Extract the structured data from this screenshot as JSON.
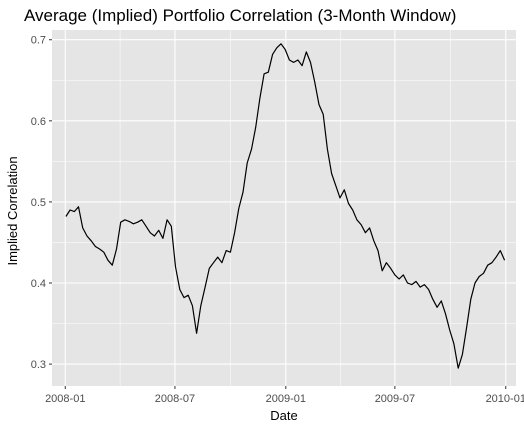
{
  "chart_data": {
    "type": "line",
    "title": "Average (Implied) Portfolio Correlation (3-Month Window)",
    "xlabel": "Date",
    "ylabel": "Implied Correlation",
    "x_ticks": [
      "2008-01",
      "2008-07",
      "2009-01",
      "2009-07",
      "2010-01"
    ],
    "y_ticks": [
      "0.3",
      "0.4",
      "0.5",
      "0.6",
      "0.7"
    ],
    "xlim": [
      "2007-12-10",
      "2010-01-18"
    ],
    "ylim": [
      0.273,
      0.712
    ],
    "grid": true,
    "legend": "none",
    "colors": {
      "panel": "#e5e5e5",
      "grid": "#ffffff",
      "line": "#000000",
      "tick": "#4d4d4d"
    },
    "series": [
      {
        "x": [
          "2008-01-02",
          "2008-01-09",
          "2008-01-16",
          "2008-01-23",
          "2008-01-30",
          "2008-02-06",
          "2008-02-13",
          "2008-02-20",
          "2008-02-27",
          "2008-03-05",
          "2008-03-12",
          "2008-03-19",
          "2008-03-26",
          "2008-04-02",
          "2008-04-09",
          "2008-04-16",
          "2008-04-23",
          "2008-04-30",
          "2008-05-07",
          "2008-05-14",
          "2008-05-21",
          "2008-05-28",
          "2008-06-04",
          "2008-06-11",
          "2008-06-18",
          "2008-06-25",
          "2008-07-02",
          "2008-07-09",
          "2008-07-16",
          "2008-07-23",
          "2008-07-30",
          "2008-08-06",
          "2008-08-13",
          "2008-08-20",
          "2008-08-27",
          "2008-09-03",
          "2008-09-10",
          "2008-09-17",
          "2008-09-24",
          "2008-10-01",
          "2008-10-08",
          "2008-10-15",
          "2008-10-22",
          "2008-10-29",
          "2008-11-05",
          "2008-11-12",
          "2008-11-19",
          "2008-11-26",
          "2008-12-03",
          "2008-12-10",
          "2008-12-17",
          "2008-12-24",
          "2008-12-31",
          "2009-01-07",
          "2009-01-14",
          "2009-01-21",
          "2009-01-28",
          "2009-02-04",
          "2009-02-11",
          "2009-02-18",
          "2009-02-25",
          "2009-03-04",
          "2009-03-11",
          "2009-03-18",
          "2009-03-25",
          "2009-04-01",
          "2009-04-08",
          "2009-04-15",
          "2009-04-22",
          "2009-04-29",
          "2009-05-06",
          "2009-05-13",
          "2009-05-20",
          "2009-05-27",
          "2009-06-03",
          "2009-06-10",
          "2009-06-17",
          "2009-06-24",
          "2009-07-01",
          "2009-07-08",
          "2009-07-15",
          "2009-07-22",
          "2009-07-29",
          "2009-08-05",
          "2009-08-12",
          "2009-08-19",
          "2009-08-26",
          "2009-09-02",
          "2009-09-09",
          "2009-09-16",
          "2009-09-23",
          "2009-09-30",
          "2009-10-07",
          "2009-10-14",
          "2009-10-21",
          "2009-10-28",
          "2009-11-04",
          "2009-11-11",
          "2009-11-18",
          "2009-11-25",
          "2009-12-02",
          "2009-12-09",
          "2009-12-16",
          "2009-12-23",
          "2009-12-30"
        ],
        "values": [
          0.482,
          0.49,
          0.488,
          0.494,
          0.468,
          0.458,
          0.452,
          0.445,
          0.442,
          0.438,
          0.428,
          0.422,
          0.442,
          0.475,
          0.478,
          0.476,
          0.473,
          0.475,
          0.478,
          0.47,
          0.462,
          0.458,
          0.465,
          0.455,
          0.478,
          0.47,
          0.42,
          0.392,
          0.382,
          0.385,
          0.372,
          0.338,
          0.372,
          0.395,
          0.418,
          0.425,
          0.432,
          0.425,
          0.44,
          0.438,
          0.462,
          0.492,
          0.512,
          0.548,
          0.565,
          0.592,
          0.628,
          0.658,
          0.66,
          0.682,
          0.69,
          0.695,
          0.688,
          0.675,
          0.672,
          0.675,
          0.668,
          0.685,
          0.672,
          0.648,
          0.62,
          0.608,
          0.565,
          0.535,
          0.52,
          0.505,
          0.515,
          0.498,
          0.49,
          0.478,
          0.472,
          0.462,
          0.468,
          0.452,
          0.44,
          0.415,
          0.425,
          0.418,
          0.41,
          0.405,
          0.41,
          0.4,
          0.398,
          0.402,
          0.395,
          0.398,
          0.392,
          0.38,
          0.37,
          0.378,
          0.362,
          0.342,
          0.325,
          0.295,
          0.312,
          0.345,
          0.38,
          0.4,
          0.408,
          0.412,
          0.422,
          0.425,
          0.432,
          0.44,
          0.428
        ]
      }
    ]
  }
}
